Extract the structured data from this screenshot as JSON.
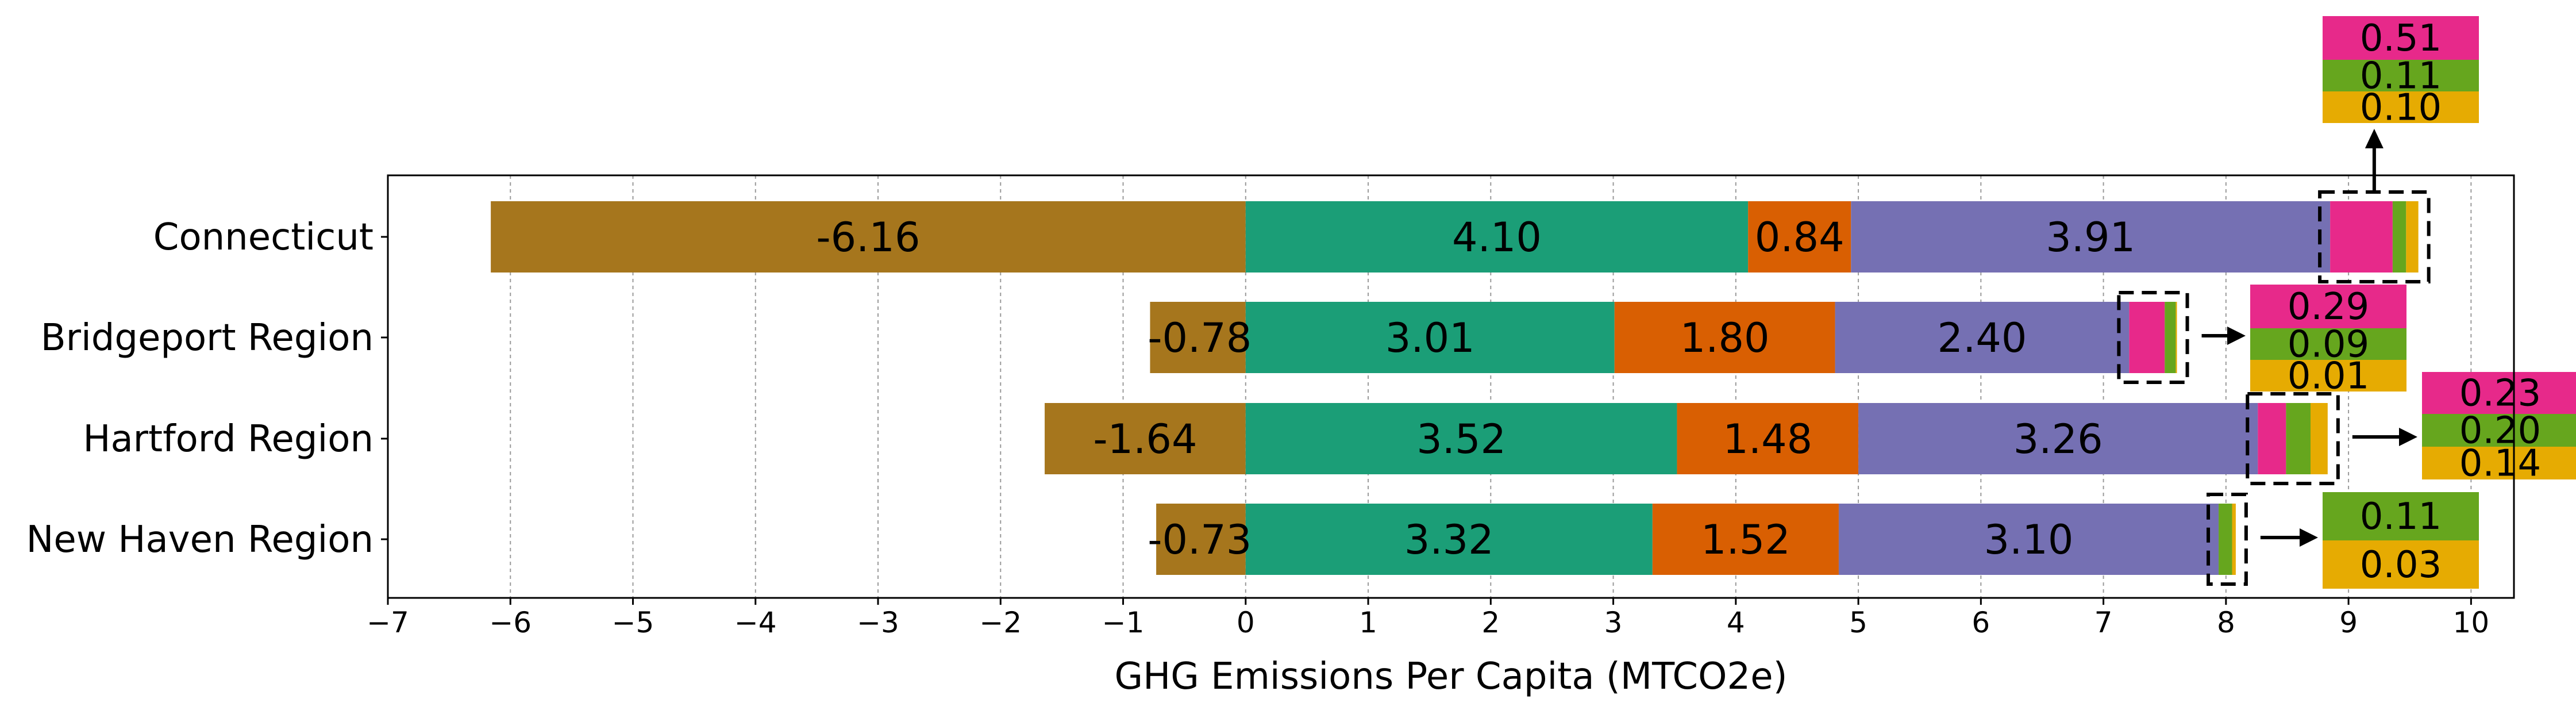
{
  "chart_data": {
    "type": "bar",
    "orientation": "horizontal",
    "stacked": true,
    "categories": [
      "Connecticut",
      "Bridgeport Region",
      "Hartford Region",
      "New Haven Region"
    ],
    "series": [
      {
        "values": [
          -6.16,
          -0.78,
          -1.64,
          -0.73
        ],
        "color": "#a6761d"
      },
      {
        "values": [
          4.1,
          3.01,
          3.52,
          3.32
        ],
        "color": "#1b9e77"
      },
      {
        "values": [
          0.84,
          1.8,
          1.48,
          1.52
        ],
        "color": "#d95f02"
      },
      {
        "values": [
          3.91,
          2.4,
          3.26,
          3.1
        ],
        "color": "#7570b3"
      },
      {
        "values": [
          0.51,
          0.29,
          0.23,
          null
        ],
        "color": "#e7298a"
      },
      {
        "values": [
          0.11,
          0.09,
          0.2,
          0.11
        ],
        "color": "#66a61e"
      },
      {
        "values": [
          0.1,
          0.01,
          0.14,
          0.03
        ],
        "color": "#e6ab02"
      }
    ],
    "xlabel": "GHG Emissions Per Capita (MTCO2e)",
    "xlim": [
      -7,
      10.35
    ],
    "xticks": [
      -7,
      -6,
      -5,
      -4,
      -3,
      -2,
      -1,
      0,
      1,
      2,
      3,
      4,
      5,
      6,
      7,
      8,
      9,
      10
    ],
    "grid": "x-major dashed"
  }
}
